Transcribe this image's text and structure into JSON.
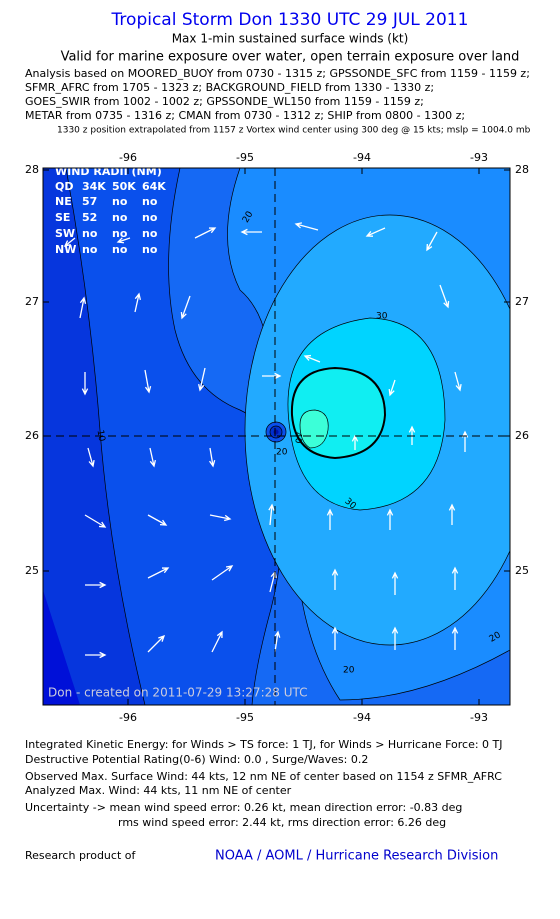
{
  "header": {
    "title": "Tropical Storm Don 1330 UTC 29 JUL 2011",
    "subtitle": "Max 1-min sustained surface winds (kt)",
    "validity": "Valid for marine exposure over water, open terrain exposure over land",
    "analysis": [
      "Analysis based on MOORED_BUOY from 0730 - 1315 z; GPSSONDE_SFC from 1159 - 1159 z;",
      "SFMR_AFRC from 1705 - 1323 z; BACKGROUND_FIELD from 1330 - 1330 z;",
      "GOES_SWIR from 1002 - 1002 z; GPSSONDE_WL150 from 1159 - 1159 z;",
      "METAR from 0735 - 1316 z; CMAN from 0730 - 1312 z; SHIP from 0800 - 1300 z;"
    ],
    "position_note": "1330 z position extrapolated from 1157 z Vortex wind center using 300 deg @ 15 kts; mslp = 1004.0 mb"
  },
  "map": {
    "lon_ticks": [
      "-96",
      "-95",
      "-94",
      "-93"
    ],
    "lat_ticks": [
      "28",
      "27",
      "26",
      "25"
    ],
    "wind_radii": {
      "title": "WIND RADII (NM)",
      "header": [
        "QD",
        "34K",
        "50K",
        "64K"
      ],
      "rows": [
        [
          "NE",
          "57",
          "no",
          "no"
        ],
        [
          "SE",
          "52",
          "no",
          "no"
        ],
        [
          "SW",
          "no",
          "no",
          "no"
        ],
        [
          "NW",
          "no",
          "no",
          "no"
        ]
      ]
    },
    "contour_labels": [
      "10",
      "20",
      "30",
      "30",
      "20",
      "20",
      "40",
      "20"
    ],
    "created": "Don - created on 2011-07-29 13:27:28 UTC"
  },
  "footer": {
    "ike": "Integrated Kinetic Energy:  for Winds > TS force: 1 TJ,  for Winds > Hurricane Force: 0 TJ",
    "dpr": "Destructive Potential Rating(0-6)   Wind: 0.0 , Surge/Waves: 0.2",
    "observed": "Observed Max. Surface Wind: 44 kts, 12 nm NE of center based on 1154 z SFMR_AFRC",
    "analyzed": "Analyzed Max. Wind: 44 kts, 11 nm NE of center",
    "uncertainty_1": "Uncertainty -> mean wind speed error: 0.26 kt,   mean direction error:  -0.83 deg",
    "uncertainty_2": "rms wind speed error: 2.44 kt,   rms direction error: 6.26 deg",
    "product": "Research product of",
    "org": "NOAA / AOML / Hurricane Research Division"
  }
}
